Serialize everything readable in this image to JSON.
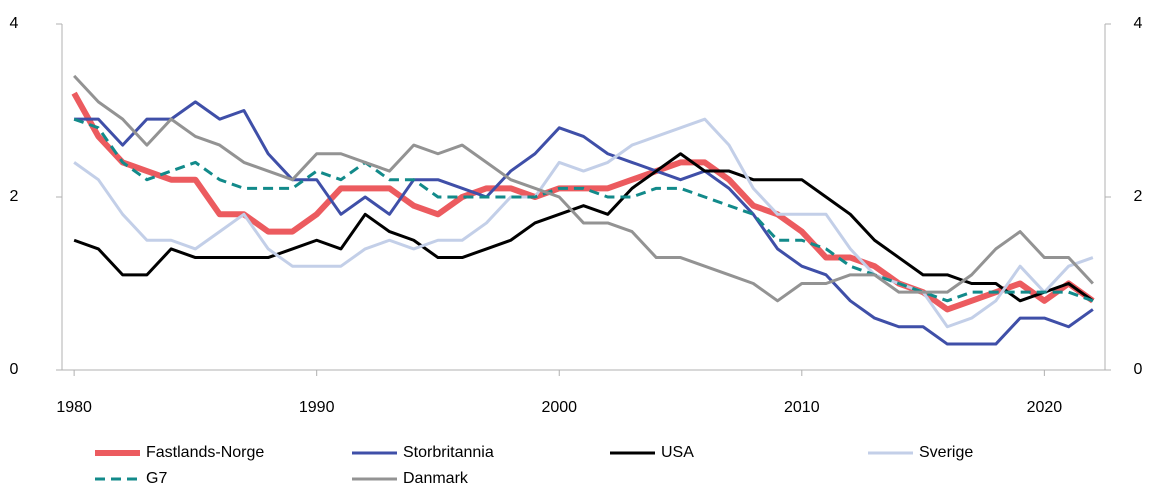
{
  "chart_data": {
    "type": "line",
    "x": [
      1980,
      1981,
      1982,
      1983,
      1984,
      1985,
      1986,
      1987,
      1988,
      1989,
      1990,
      1991,
      1992,
      1993,
      1994,
      1995,
      1996,
      1997,
      1998,
      1999,
      2000,
      2001,
      2002,
      2003,
      2004,
      2005,
      2006,
      2007,
      2008,
      2009,
      2010,
      2011,
      2012,
      2013,
      2014,
      2015,
      2016,
      2017,
      2018,
      2019,
      2020,
      2021,
      2022
    ],
    "xlim": [
      1979.5,
      2022.5
    ],
    "xticks": [
      1980,
      1990,
      2000,
      2010,
      2020
    ],
    "ylim": [
      0,
      4
    ],
    "yticks": [
      0,
      2,
      4
    ],
    "y2lim": [
      0,
      4
    ],
    "y2ticks": [
      0,
      2,
      4
    ],
    "series": [
      {
        "name": "Fastlands-Norge",
        "color": "#ec5b5f",
        "width": 6,
        "dashed": false,
        "values": [
          3.2,
          2.7,
          2.4,
          2.3,
          2.2,
          2.2,
          1.8,
          1.8,
          1.6,
          1.6,
          1.8,
          2.1,
          2.1,
          2.1,
          1.9,
          1.8,
          2.0,
          2.1,
          2.1,
          2.0,
          2.1,
          2.1,
          2.1,
          2.2,
          2.3,
          2.4,
          2.4,
          2.2,
          1.9,
          1.8,
          1.6,
          1.3,
          1.3,
          1.2,
          1.0,
          0.9,
          0.7,
          0.8,
          0.9,
          1.0,
          0.8,
          1.0,
          0.8
        ]
      },
      {
        "name": "Storbritannia",
        "color": "#3f4fa8",
        "width": 3,
        "dashed": false,
        "values": [
          2.9,
          2.9,
          2.6,
          2.9,
          2.9,
          3.1,
          2.9,
          3.0,
          2.5,
          2.2,
          2.2,
          1.8,
          2.0,
          1.8,
          2.2,
          2.2,
          2.1,
          2.0,
          2.3,
          2.5,
          2.8,
          2.7,
          2.5,
          2.4,
          2.3,
          2.2,
          2.3,
          2.1,
          1.8,
          1.4,
          1.2,
          1.1,
          0.8,
          0.6,
          0.5,
          0.5,
          0.3,
          0.3,
          0.3,
          0.6,
          0.6,
          0.5,
          0.7
        ]
      },
      {
        "name": "USA",
        "color": "#000000",
        "width": 3,
        "dashed": false,
        "values": [
          1.5,
          1.4,
          1.1,
          1.1,
          1.4,
          1.3,
          1.3,
          1.3,
          1.3,
          1.4,
          1.5,
          1.4,
          1.8,
          1.6,
          1.5,
          1.3,
          1.3,
          1.4,
          1.5,
          1.7,
          1.8,
          1.9,
          1.8,
          2.1,
          2.3,
          2.5,
          2.3,
          2.3,
          2.2,
          2.2,
          2.2,
          2.0,
          1.8,
          1.5,
          1.3,
          1.1,
          1.1,
          1.0,
          1.0,
          0.8,
          0.9,
          1.0,
          0.8
        ]
      },
      {
        "name": "Sverige",
        "color": "#c3cfe8",
        "width": 3,
        "dashed": false,
        "values": [
          2.4,
          2.2,
          1.8,
          1.5,
          1.5,
          1.4,
          1.6,
          1.8,
          1.4,
          1.2,
          1.2,
          1.2,
          1.4,
          1.5,
          1.4,
          1.5,
          1.5,
          1.7,
          2.0,
          2.0,
          2.4,
          2.3,
          2.4,
          2.6,
          2.7,
          2.8,
          2.9,
          2.6,
          2.1,
          1.8,
          1.8,
          1.8,
          1.4,
          1.1,
          1.0,
          0.9,
          0.5,
          0.6,
          0.8,
          1.2,
          0.9,
          1.2,
          1.3
        ]
      },
      {
        "name": "G7",
        "color": "#128a8a",
        "width": 3,
        "dashed": true,
        "values": [
          2.9,
          2.8,
          2.4,
          2.2,
          2.3,
          2.4,
          2.2,
          2.1,
          2.1,
          2.1,
          2.3,
          2.2,
          2.4,
          2.2,
          2.2,
          2.0,
          2.0,
          2.0,
          2.0,
          2.0,
          2.1,
          2.1,
          2.0,
          2.0,
          2.1,
          2.1,
          2.0,
          1.9,
          1.8,
          1.5,
          1.5,
          1.4,
          1.2,
          1.1,
          1.0,
          0.9,
          0.8,
          0.9,
          0.9,
          0.9,
          0.9,
          0.9,
          0.8
        ]
      },
      {
        "name": "Danmark",
        "color": "#939393",
        "width": 3,
        "dashed": false,
        "values": [
          3.4,
          3.1,
          2.9,
          2.6,
          2.9,
          2.7,
          2.6,
          2.4,
          2.3,
          2.2,
          2.5,
          2.5,
          2.4,
          2.3,
          2.6,
          2.5,
          2.6,
          2.4,
          2.2,
          2.1,
          2.0,
          1.7,
          1.7,
          1.6,
          1.3,
          1.3,
          1.2,
          1.1,
          1.0,
          0.8,
          1.0,
          1.0,
          1.1,
          1.1,
          0.9,
          0.9,
          0.9,
          1.1,
          1.4,
          1.6,
          1.3,
          1.3,
          1.0
        ]
      }
    ]
  }
}
